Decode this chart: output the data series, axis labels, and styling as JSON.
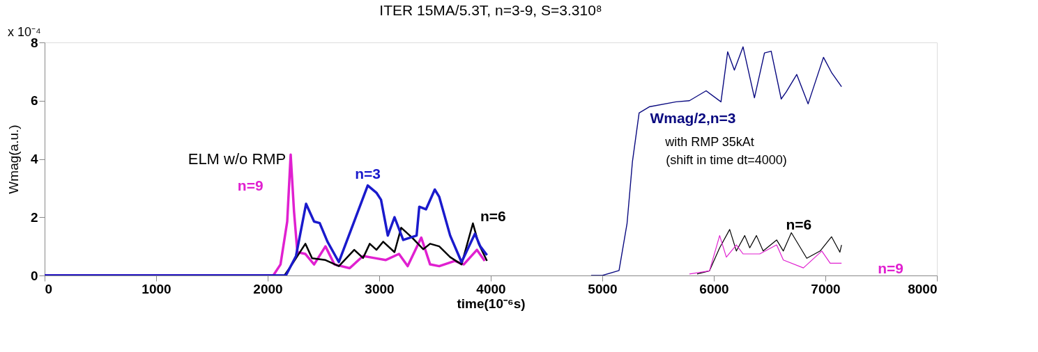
{
  "chart_data": {
    "type": "line",
    "title": "ITER 15MA/5.3T, n=3-9, S=3.310⁸",
    "xlabel": "time(10⁻⁶s)",
    "ylabel": "Wmag(a.u.)",
    "xlim": [
      0,
      8000
    ],
    "xticks": [
      0,
      1000,
      2000,
      3000,
      4000,
      5000,
      6000,
      7000,
      8000
    ],
    "ylim": [
      0,
      8
    ],
    "yticks": [
      0,
      2,
      4,
      6,
      8
    ],
    "grid": false,
    "marker": "none",
    "line_style": "solid",
    "annotations": [
      "ELM w/o RMP",
      "with RMP 35kAt",
      "(shift in time dt=4000)",
      "x 10⁻⁴"
    ],
    "series": [
      {
        "name": "n=9",
        "color": "#e020d0",
        "x": [
          0,
          2050,
          2115,
          2175,
          2206,
          2236,
          2266,
          2338,
          2416,
          2518,
          2598,
          2735,
          2855,
          2955,
          3057,
          3177,
          3255,
          3377,
          3456,
          3538,
          3677,
          3758,
          3876,
          3946
        ],
        "values": [
          0,
          0,
          0.38,
          1.85,
          4.15,
          2.2,
          0.8,
          0.74,
          0.38,
          1.0,
          0.38,
          0.25,
          0.67,
          0.6,
          0.53,
          0.74,
          0.32,
          1.3,
          0.38,
          0.32,
          0.5,
          0.38,
          0.88,
          0.5
        ]
      },
      {
        "name": "n=6",
        "color": "#000000",
        "x": [
          0,
          2150,
          2218,
          2338,
          2398,
          2518,
          2638,
          2776,
          2855,
          2915,
          2975,
          3035,
          3137,
          3197,
          3295,
          3395,
          3456,
          3538,
          3636,
          3738,
          3840,
          3890,
          3966
        ],
        "values": [
          0,
          0,
          0.38,
          1.09,
          0.59,
          0.53,
          0.32,
          0.88,
          0.6,
          1.09,
          0.88,
          1.16,
          0.8,
          1.64,
          1.3,
          0.9,
          1.09,
          1.0,
          0.63,
          0.38,
          1.79,
          1.1,
          0.5
        ]
      },
      {
        "name": "n=3",
        "color": "#1a1acc",
        "x": [
          0,
          2163,
          2254,
          2344,
          2416,
          2466,
          2536,
          2638,
          2897,
          2975,
          3016,
          3077,
          3137,
          3215,
          3335,
          3359,
          3419,
          3498,
          3538,
          3636,
          3738,
          3858,
          3906,
          3966
        ],
        "values": [
          0,
          0,
          0.67,
          2.46,
          1.85,
          1.8,
          1.16,
          0.46,
          3.09,
          2.84,
          2.6,
          1.37,
          2.0,
          1.22,
          1.37,
          2.36,
          2.27,
          2.95,
          2.7,
          1.37,
          0.46,
          1.43,
          1.0,
          0.7
        ]
      },
      {
        "name": "Wmag/2,n=3",
        "color": "#0a0a80",
        "x": [
          4900,
          5000,
          5150,
          5222,
          5270,
          5330,
          5421,
          5661,
          5781,
          5931,
          6064,
          6124,
          6184,
          6262,
          6364,
          6454,
          6514,
          6604,
          6649,
          6743,
          6845,
          6983,
          7058,
          7145
        ],
        "values": [
          0,
          0,
          0.17,
          1.79,
          3.9,
          5.58,
          5.79,
          5.96,
          6.0,
          6.34,
          5.96,
          7.68,
          7.05,
          7.85,
          6.1,
          7.64,
          7.7,
          6.06,
          6.3,
          6.9,
          5.89,
          7.49,
          6.95,
          6.48
        ]
      },
      {
        "name": "n=6",
        "color": "#000000",
        "x": [
          5850,
          5961,
          6052,
          6142,
          6202,
          6277,
          6322,
          6382,
          6442,
          6563,
          6623,
          6695,
          6833,
          6953,
          7055,
          7130,
          7145
        ],
        "values": [
          0.05,
          0.16,
          0.95,
          1.58,
          0.84,
          1.37,
          0.95,
          1.37,
          0.84,
          1.22,
          0.84,
          1.47,
          0.59,
          0.84,
          1.33,
          0.8,
          1.05
        ]
      },
      {
        "name": "n=9",
        "color": "#e020d0",
        "x": [
          5781,
          5961,
          6052,
          6112,
          6202,
          6262,
          6412,
          6563,
          6623,
          6803,
          6968,
          7043,
          7145
        ],
        "values": [
          0.05,
          0.16,
          1.37,
          0.63,
          1.05,
          0.74,
          0.74,
          1.05,
          0.53,
          0.26,
          0.84,
          0.42,
          0.42
        ]
      }
    ]
  }
}
